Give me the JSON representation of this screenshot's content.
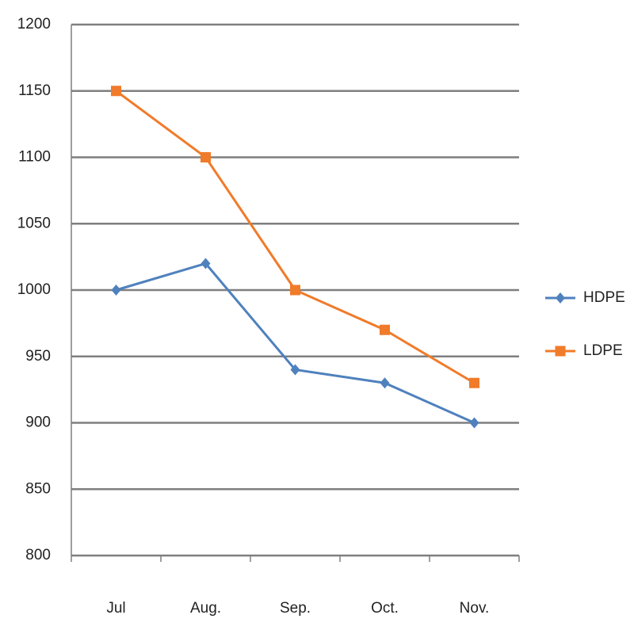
{
  "chart_data": {
    "type": "line",
    "categories": [
      "Jul",
      "Aug.",
      "Sep.",
      "Oct.",
      "Nov."
    ],
    "series": [
      {
        "name": "HDPE",
        "color": "#4f81bd",
        "marker": "diamond",
        "values": [
          1000,
          1020,
          940,
          930,
          900
        ]
      },
      {
        "name": "LDPE",
        "color": "#f07b2a",
        "marker": "square",
        "values": [
          1150,
          1100,
          1000,
          970,
          930
        ]
      }
    ],
    "ylim": [
      800,
      1200
    ],
    "yticks": [
      800,
      850,
      900,
      950,
      1000,
      1050,
      1100,
      1150,
      1200
    ],
    "grid": true,
    "legend": "right"
  }
}
